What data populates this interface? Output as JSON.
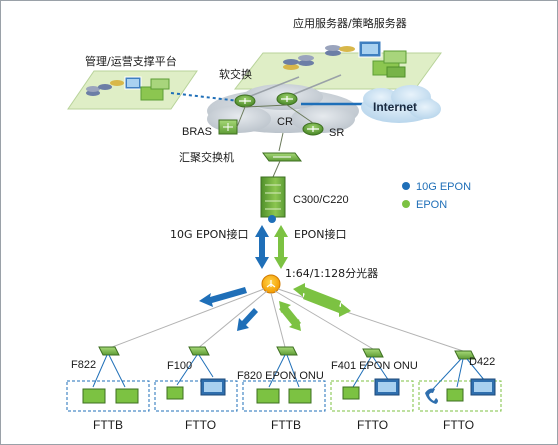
{
  "labels": {
    "app_server": "应用服务器/策略服务器",
    "mgmt_platform": "管理/运营支撑平台",
    "softswitch": "软交换",
    "cr": "CR",
    "bras": "BRAS",
    "sr": "SR",
    "internet": "Internet",
    "aggregation_switch": "汇聚交换机",
    "olt": "C300/C220",
    "port_10g": "10G EPON接口",
    "port_epon": "EPON接口",
    "splitter": "1:64/1:128分光器"
  },
  "legend": [
    {
      "label": "10G EPON",
      "color": "#1f6fb8"
    },
    {
      "label": "EPON",
      "color": "#7cc242"
    }
  ],
  "terminals": [
    {
      "model": "F822",
      "scenario": "FTTB"
    },
    {
      "model": "F100",
      "scenario": "FTTO"
    },
    {
      "model": "F820 EPON ONU",
      "scenario": "FTTB"
    },
    {
      "model": "F401 EPON ONU",
      "scenario": "FTTO"
    },
    {
      "model": "D422",
      "scenario": "FTTO"
    }
  ],
  "icons": {
    "server": "server-rack-icon",
    "router": "router-icon",
    "switch": "switch-icon",
    "olt": "olt-chassis-icon",
    "splitter": "optical-splitter-icon",
    "onu": "onu-device-icon",
    "pc": "computer-icon",
    "phone": "telephone-icon",
    "cloud": "cloud-icon"
  },
  "colors": {
    "ten_g_epon": "#1f6fb8",
    "epon": "#7cc242",
    "platform": "#dfeec6",
    "router": "#5d9d3a",
    "fiber": "#b3b3b3"
  }
}
